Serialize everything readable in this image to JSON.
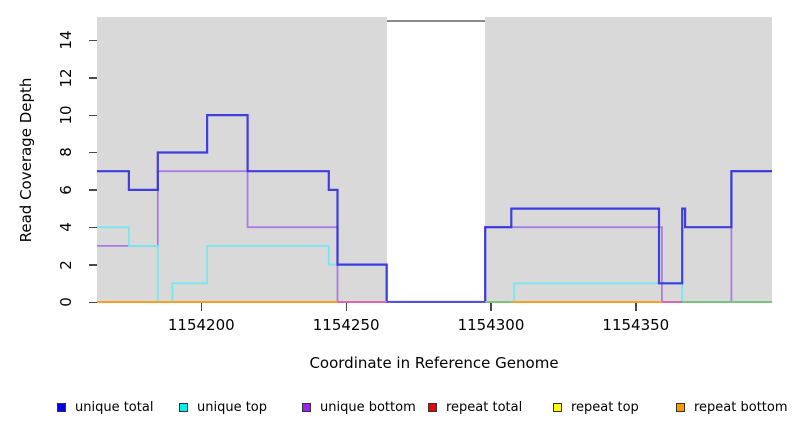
{
  "figure": {
    "y_axis_label": "Read Coverage Depth",
    "x_axis_label": "Coordinate in Reference Genome"
  },
  "chart_data": {
    "type": "line",
    "subtype": "step-coverage-plot",
    "title": "",
    "xlabel": "Coordinate in Reference Genome",
    "ylabel": "Read Coverage Depth",
    "xlim": [
      1154164,
      1154397
    ],
    "ylim": [
      0,
      15.25
    ],
    "grid": "off",
    "plot_background": "#d9d9d9",
    "x_ticks": [
      {
        "value": 1154200,
        "label": "1154200"
      },
      {
        "value": 1154250,
        "label": "1154250"
      },
      {
        "value": 1154300,
        "label": "1154300"
      },
      {
        "value": 1154350,
        "label": "1154350"
      }
    ],
    "y_ticks": [
      {
        "value": 0,
        "label": "0"
      },
      {
        "value": 2,
        "label": "2"
      },
      {
        "value": 4,
        "label": "4"
      },
      {
        "value": 6,
        "label": "6"
      },
      {
        "value": 8,
        "label": "8"
      },
      {
        "value": 10,
        "label": "10"
      },
      {
        "value": 12,
        "label": "12"
      },
      {
        "value": 14,
        "label": "14"
      }
    ],
    "no_coverage_gap": {
      "from": 1154264,
      "to": 1154298,
      "fill": "#ffffff",
      "top_border": "#8a8a8a"
    },
    "series": [
      {
        "name": "repeat total",
        "color": "#ee0000",
        "width": 1.8,
        "points": [
          [
            1154164,
            0
          ]
        ]
      },
      {
        "name": "repeat top",
        "color": "#ffff00",
        "width": 1.8,
        "points": [
          [
            1154164,
            0
          ]
        ]
      },
      {
        "name": "repeat bottom",
        "color": "#ff9d26",
        "width": 2,
        "points": [
          [
            1154164,
            0
          ]
        ]
      },
      {
        "name": "unique bottom",
        "color": "#aa7de5",
        "width": 1.8,
        "points": [
          [
            1154164,
            3
          ],
          [
            1154185,
            7
          ],
          [
            1154216,
            4
          ],
          [
            1154247,
            0
          ],
          [
            1154298,
            4
          ],
          [
            1154359,
            0
          ],
          [
            1154383,
            7
          ]
        ]
      },
      {
        "name": "unique top",
        "color": "#76e8f0",
        "width": 1.8,
        "points": [
          [
            1154164,
            4
          ],
          [
            1154175,
            3
          ],
          [
            1154185,
            0
          ],
          [
            1154190,
            1
          ],
          [
            1154202,
            3
          ],
          [
            1154244,
            2
          ],
          [
            1154264,
            0
          ],
          [
            1154308,
            1
          ],
          [
            1154366,
            0
          ]
        ]
      },
      {
        "name": "unique total",
        "color": "#2d2de0",
        "width": 2.2,
        "points": [
          [
            1154164,
            7
          ],
          [
            1154175,
            6
          ],
          [
            1154185,
            8
          ],
          [
            1154202,
            10
          ],
          [
            1154216,
            7
          ],
          [
            1154244,
            6
          ],
          [
            1154247,
            2
          ],
          [
            1154264,
            0
          ],
          [
            1154298,
            4
          ],
          [
            1154307,
            5
          ],
          [
            1154358,
            1
          ],
          [
            1154366,
            5
          ],
          [
            1154367,
            4
          ],
          [
            1154383,
            7
          ]
        ]
      }
    ],
    "baseline_overdraw": [
      {
        "from": 1154164,
        "to": 1154247,
        "color": "#ff9d26"
      },
      {
        "from": 1154247,
        "to": 1154264,
        "color": "#d968b4"
      },
      {
        "from": 1154264,
        "to": 1154298,
        "color": "#5a50d8"
      },
      {
        "from": 1154298,
        "to": 1154307,
        "color": "#7cc47c"
      },
      {
        "from": 1154307,
        "to": 1154359,
        "color": "#ff9d26"
      },
      {
        "from": 1154359,
        "to": 1154366,
        "color": "#d968b4"
      },
      {
        "from": 1154366,
        "to": 1154397,
        "color": "#7cc47c"
      }
    ]
  },
  "legend": {
    "items": [
      {
        "label": "unique total",
        "color": "#0000ee"
      },
      {
        "label": "unique top",
        "color": "#00eeee"
      },
      {
        "label": "unique bottom",
        "color": "#a020f0"
      },
      {
        "label": "repeat total",
        "color": "#ee0000"
      },
      {
        "label": "repeat top",
        "color": "#ffff00"
      },
      {
        "label": "repeat bottom",
        "color": "#ff9800"
      }
    ]
  }
}
